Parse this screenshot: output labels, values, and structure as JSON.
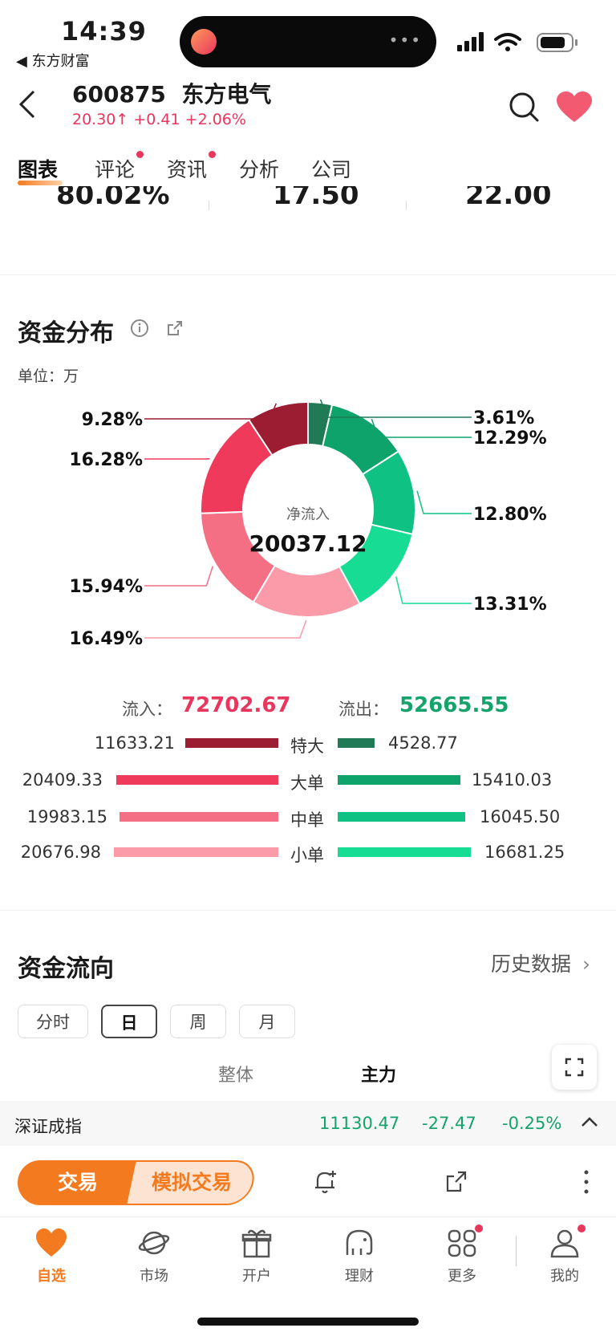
{
  "status_bar": {
    "time": "14:39",
    "back_app": "◀ 东方财富"
  },
  "header": {
    "code": "600875",
    "name": "东方电气",
    "price": "20.30",
    "change": "+0.41",
    "change_pct": "+2.06%"
  },
  "tabs": [
    {
      "label": "图表",
      "active": true
    },
    {
      "label": "评论",
      "dot": true
    },
    {
      "label": "资讯",
      "dot": true
    },
    {
      "label": "分析"
    },
    {
      "label": "公司"
    }
  ],
  "partial_row": [
    "80.02%",
    "17.50",
    "22.00"
  ],
  "fund_distribution": {
    "title": "资金分布",
    "unit": "单位：万",
    "center_label": "净流入",
    "center_value": "20037.12",
    "in_label": "流入：",
    "in_value": "72702.67",
    "out_label": "流出：",
    "out_value": "52665.55",
    "rows": [
      {
        "in": "11633.21",
        "label": "特大",
        "out": "4528.77"
      },
      {
        "in": "20409.33",
        "label": "大单",
        "out": "15410.03"
      },
      {
        "in": "19983.15",
        "label": "中单",
        "out": "16045.50"
      },
      {
        "in": "20676.98",
        "label": "小单",
        "out": "16681.25"
      }
    ]
  },
  "chart_data": {
    "type": "pie",
    "center_label": "净流入",
    "center_value": 20037.12,
    "slices": [
      {
        "label": "3.61%",
        "value": 3.61,
        "color": "#1f7a55"
      },
      {
        "label": "12.29%",
        "value": 12.29,
        "color": "#0ea36b"
      },
      {
        "label": "12.80%",
        "value": 12.8,
        "color": "#0fc283"
      },
      {
        "label": "13.31%",
        "value": 13.31,
        "color": "#16dc94"
      },
      {
        "label": "16.49%",
        "value": 16.49,
        "color": "#fb9aa8"
      },
      {
        "label": "15.94%",
        "value": 15.94,
        "color": "#f46e84"
      },
      {
        "label": "16.28%",
        "value": 16.28,
        "color": "#ef3a5b"
      },
      {
        "label": "9.28%",
        "value": 9.28,
        "color": "#9c1c32"
      }
    ]
  },
  "fund_flow": {
    "title": "资金流向",
    "history": "历史数据",
    "periods": [
      {
        "label": "分时"
      },
      {
        "label": "日",
        "active": true
      },
      {
        "label": "周"
      },
      {
        "label": "月"
      }
    ],
    "subtabs": [
      {
        "label": "整体"
      },
      {
        "label": "主力",
        "active": true
      }
    ]
  },
  "index_bar": {
    "name": "深证成指",
    "value": "11130.47",
    "change": "-27.47",
    "pct": "-0.25%"
  },
  "trade": {
    "trade": "交易",
    "sim": "模拟交易"
  },
  "nav": [
    {
      "label": "自选",
      "icon": "heart-icon",
      "active": true
    },
    {
      "label": "市场",
      "icon": "planet-icon"
    },
    {
      "label": "开户",
      "icon": "gift-icon"
    },
    {
      "label": "理财",
      "icon": "elephant-icon"
    },
    {
      "label": "更多",
      "icon": "grid-icon",
      "dot": true
    },
    {
      "label": "我的",
      "icon": "user-icon",
      "dot": true
    }
  ],
  "colors": {
    "accent": "#f47a20",
    "up": "#e8365d",
    "down": "#13a36b"
  }
}
